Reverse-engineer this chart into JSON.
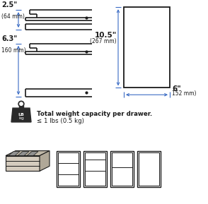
{
  "bg_color": "#ffffff",
  "dim_color": "#3a6bc4",
  "line_color": "#1a1a1a",
  "text_color": "#1a1a1a",
  "label_25_in": "2.5\"",
  "label_25_mm": "(64 mm)",
  "label_63_in": "6.3\"",
  "label_63_mm": "160 mm)",
  "label_105_in": "10.5\"",
  "label_105_mm": "(267 mm)",
  "label_6_in": "6\"",
  "label_6_mm": "152 mm)",
  "weight_line1": "Total weight capacity per drawer.",
  "weight_line2": "≤ 1 lbs (0.5 kg)"
}
